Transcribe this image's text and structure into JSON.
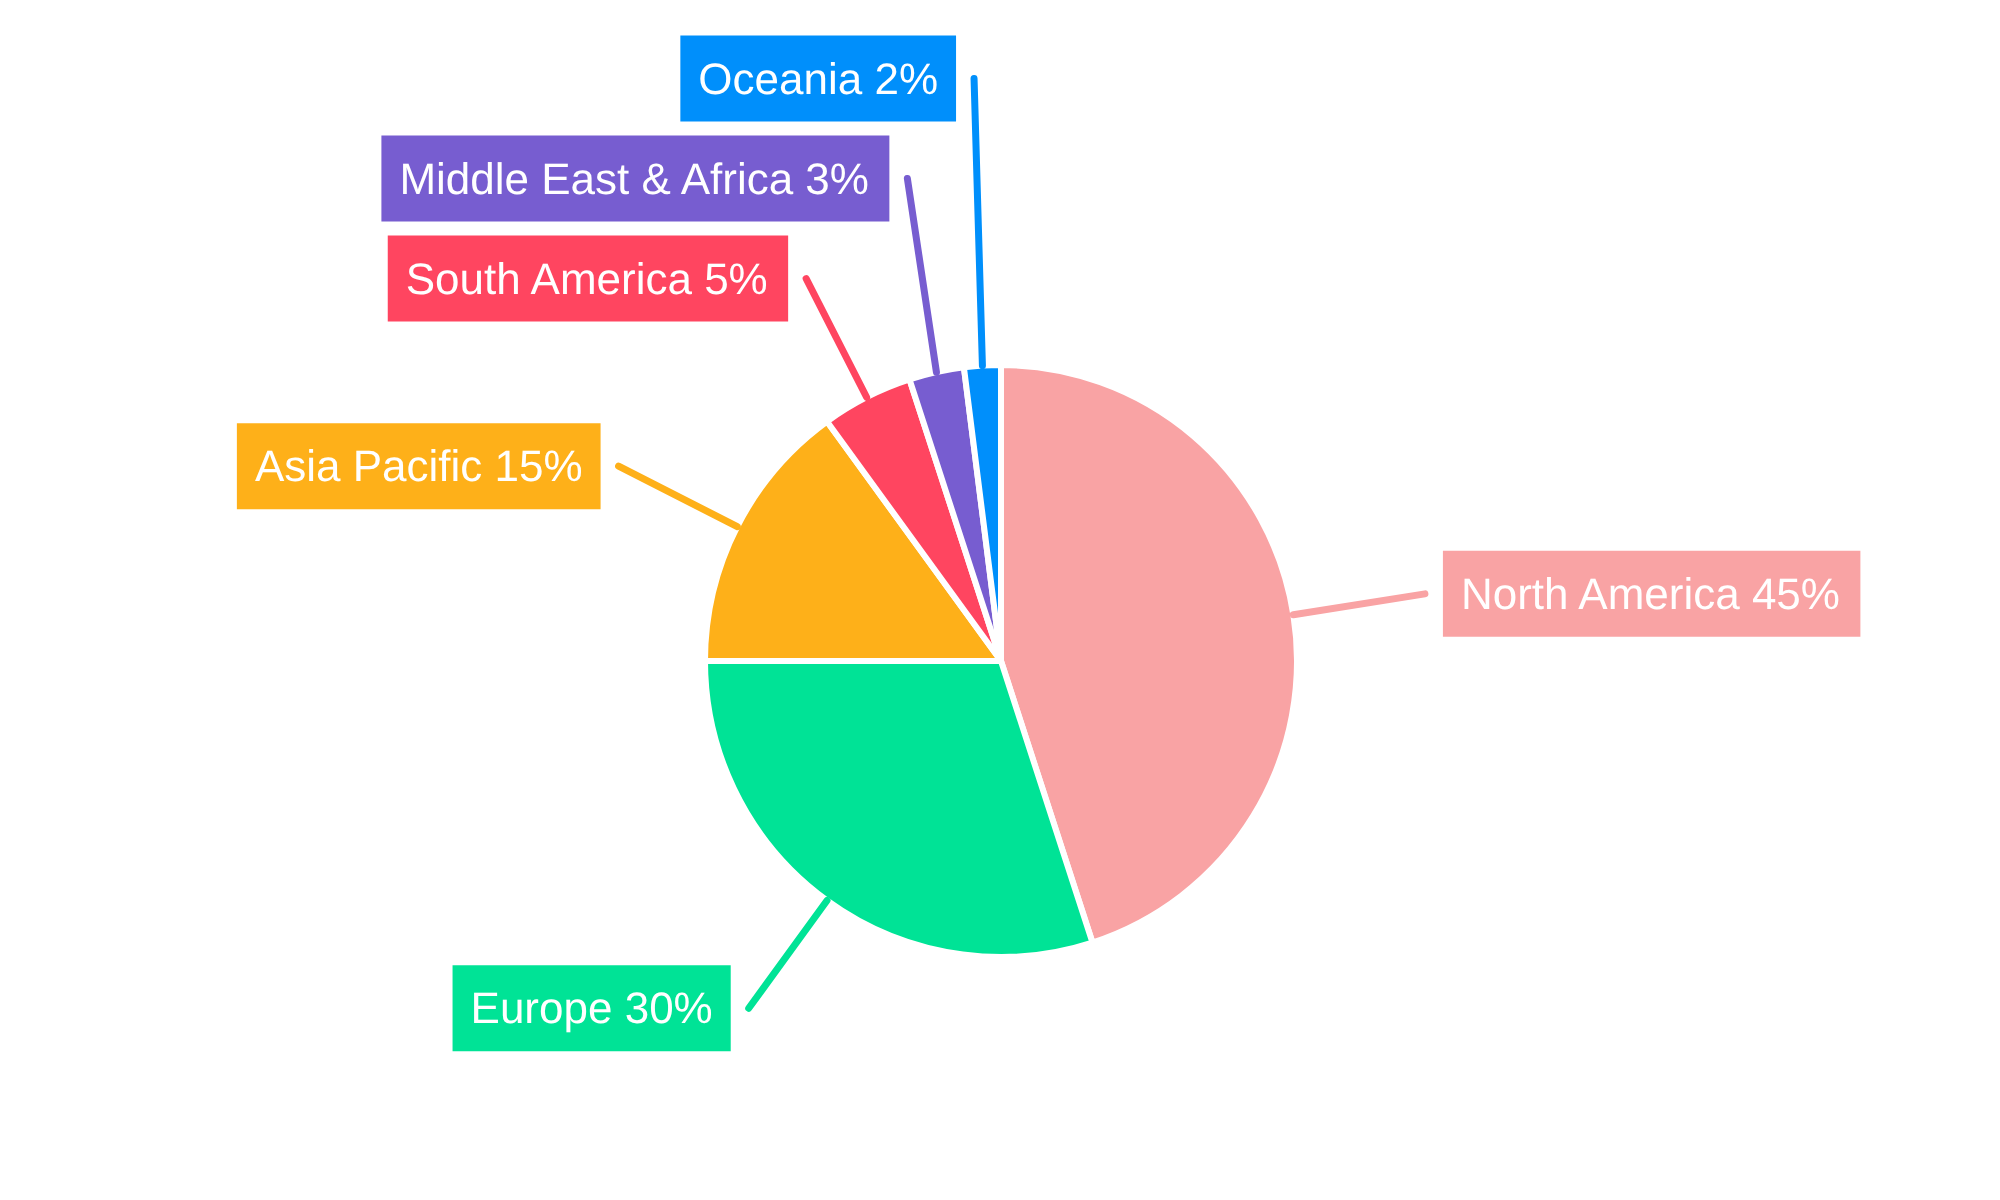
{
  "chart_data": {
    "type": "pie",
    "categories": [
      "North America",
      "Europe",
      "Asia Pacific",
      "South America",
      "Middle East & Africa",
      "Oceania"
    ],
    "values": [
      45,
      30,
      15,
      5,
      3,
      2
    ],
    "colors": [
      "#f9a3a4",
      "#00e396",
      "#feb019",
      "#ff4560",
      "#775dd0",
      "#008ffb"
    ],
    "value_labels": [
      "45%",
      "30%",
      "15%",
      "5%",
      "3%",
      "2%"
    ]
  }
}
